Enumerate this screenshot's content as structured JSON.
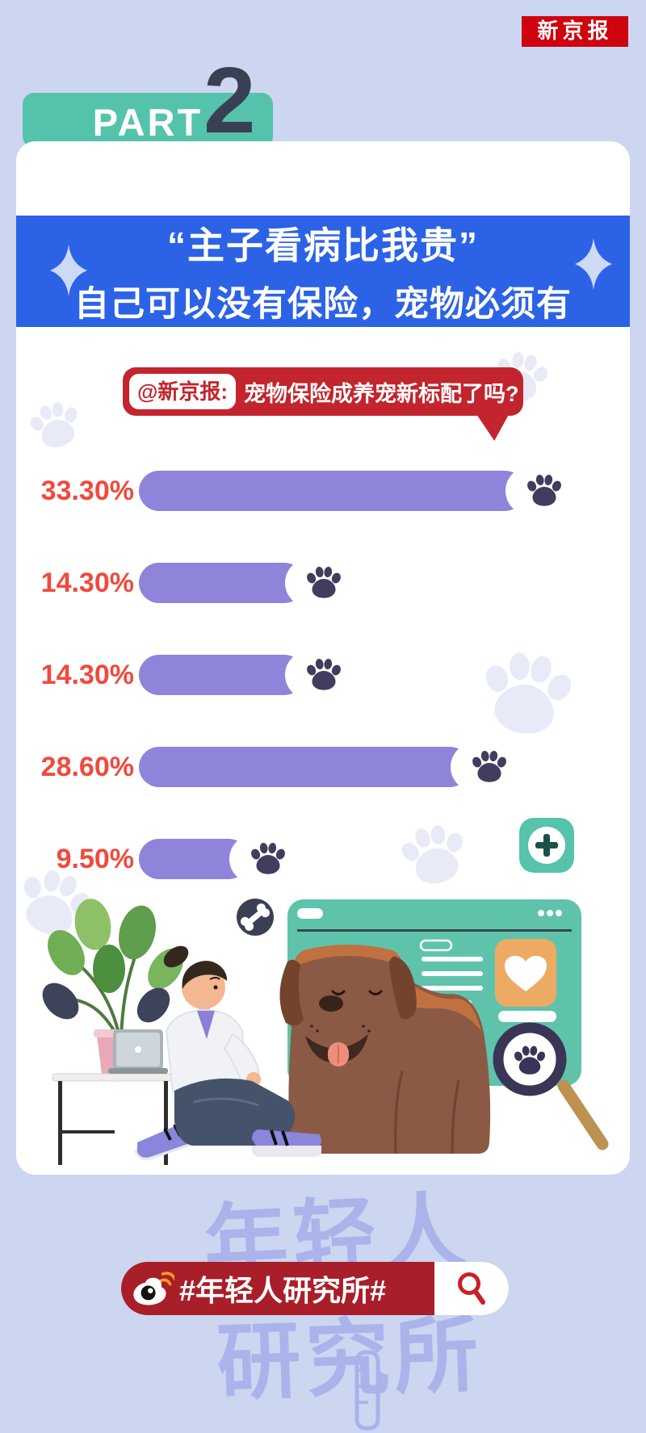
{
  "masthead": {
    "logo": "新京报"
  },
  "part_header": {
    "label": "PART",
    "number": "2"
  },
  "banner": {
    "line1": "“主子看病比我贵”",
    "line2": "自己可以没有保险，宠物必须有"
  },
  "question_bubble": {
    "source": "@新京报:",
    "text": "宠物保险成养宠新标配了吗?"
  },
  "chart_data": {
    "type": "bar",
    "orientation": "horizontal",
    "title": "宠物保险成养宠新标配了吗?",
    "values": [
      33.3,
      14.3,
      14.3,
      28.6,
      9.5
    ],
    "value_labels": [
      "33.30%",
      "14.30%",
      "14.30%",
      "28.60%",
      "9.50%"
    ],
    "categories": [
      "",
      "",
      "",
      "",
      ""
    ],
    "xlim": [
      0,
      35
    ],
    "grid": false,
    "legend": "none",
    "bar_color": "#8e85db",
    "value_label_color": "#f04a3d",
    "bar_end_icon": "paw-icon",
    "bar_end_icon_color": "#423c5e"
  },
  "footer": {
    "hashtag": "#年轻人研究所#",
    "watermark_line1": "年轻人",
    "watermark_line2": "研究所"
  },
  "colors": {
    "page_bg": "#ccd6f0",
    "card_bg": "#ffffff",
    "teal": "#55c3ab",
    "banner_blue": "#2c63e6",
    "bubble_red": "#c2252e",
    "masthead_red": "#cf040f",
    "footer_red": "#a81e29",
    "light_paw": "#e9eaf7",
    "watermark": "#a9b3ea"
  }
}
